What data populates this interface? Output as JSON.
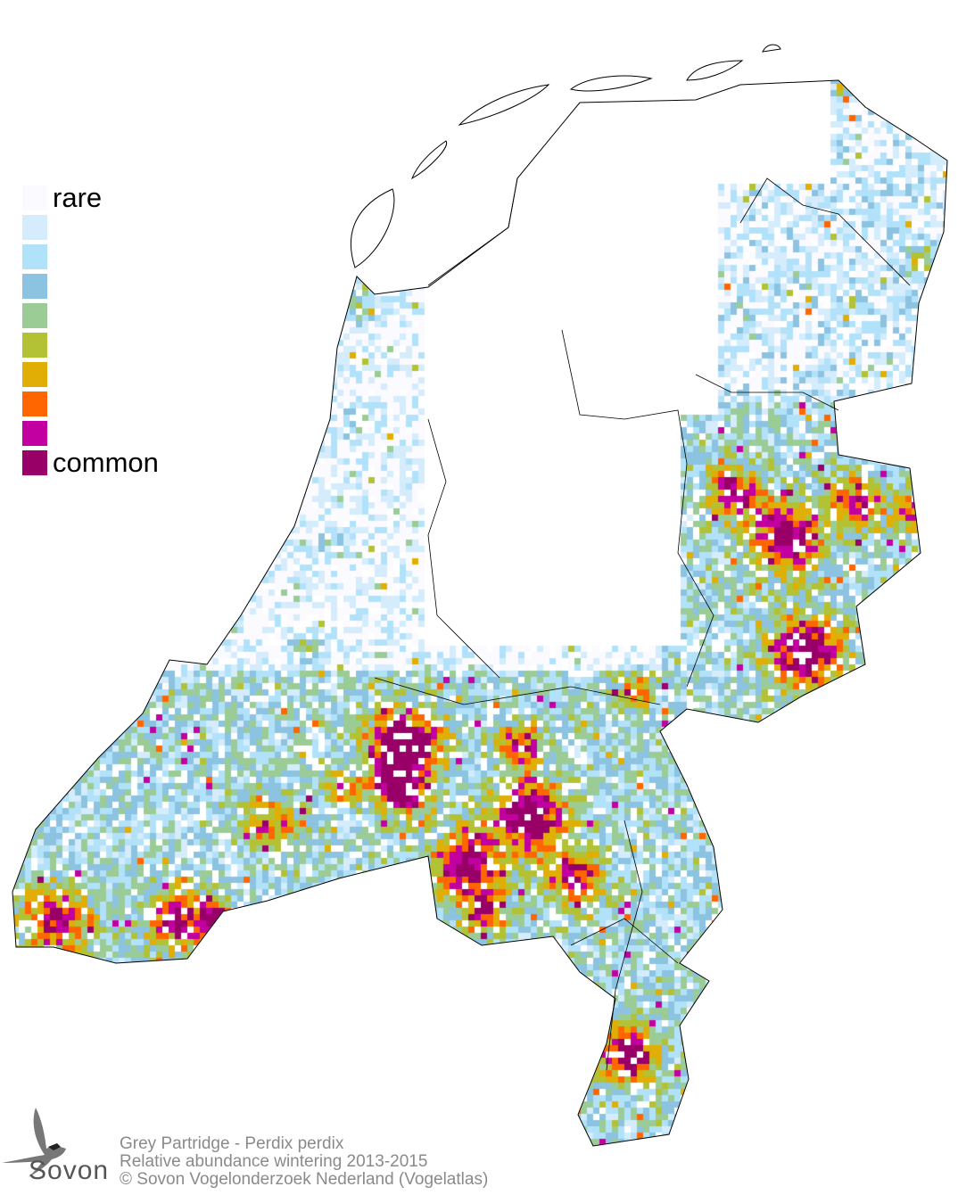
{
  "legend": {
    "items": [
      {
        "label": "rare",
        "color": "#fafaff"
      },
      {
        "label": "",
        "color": "#d4ecfb"
      },
      {
        "label": "",
        "color": "#b2e2fa"
      },
      {
        "label": "",
        "color": "#8cc3e0"
      },
      {
        "label": "",
        "color": "#9ccc96"
      },
      {
        "label": "",
        "color": "#b3c235"
      },
      {
        "label": "",
        "color": "#e0ae04"
      },
      {
        "label": "",
        "color": "#ff6600"
      },
      {
        "label": "",
        "color": "#c200a2"
      },
      {
        "label": "common",
        "color": "#980068"
      }
    ]
  },
  "logo": {
    "text": "Sovon"
  },
  "credits": {
    "species": "Grey Partridge - Perdix perdix",
    "subtitle": "Relative abundance wintering 2013-2015",
    "copyright": "© Sovon Vogelonderzoek Nederland (Vogelatlas)"
  }
}
